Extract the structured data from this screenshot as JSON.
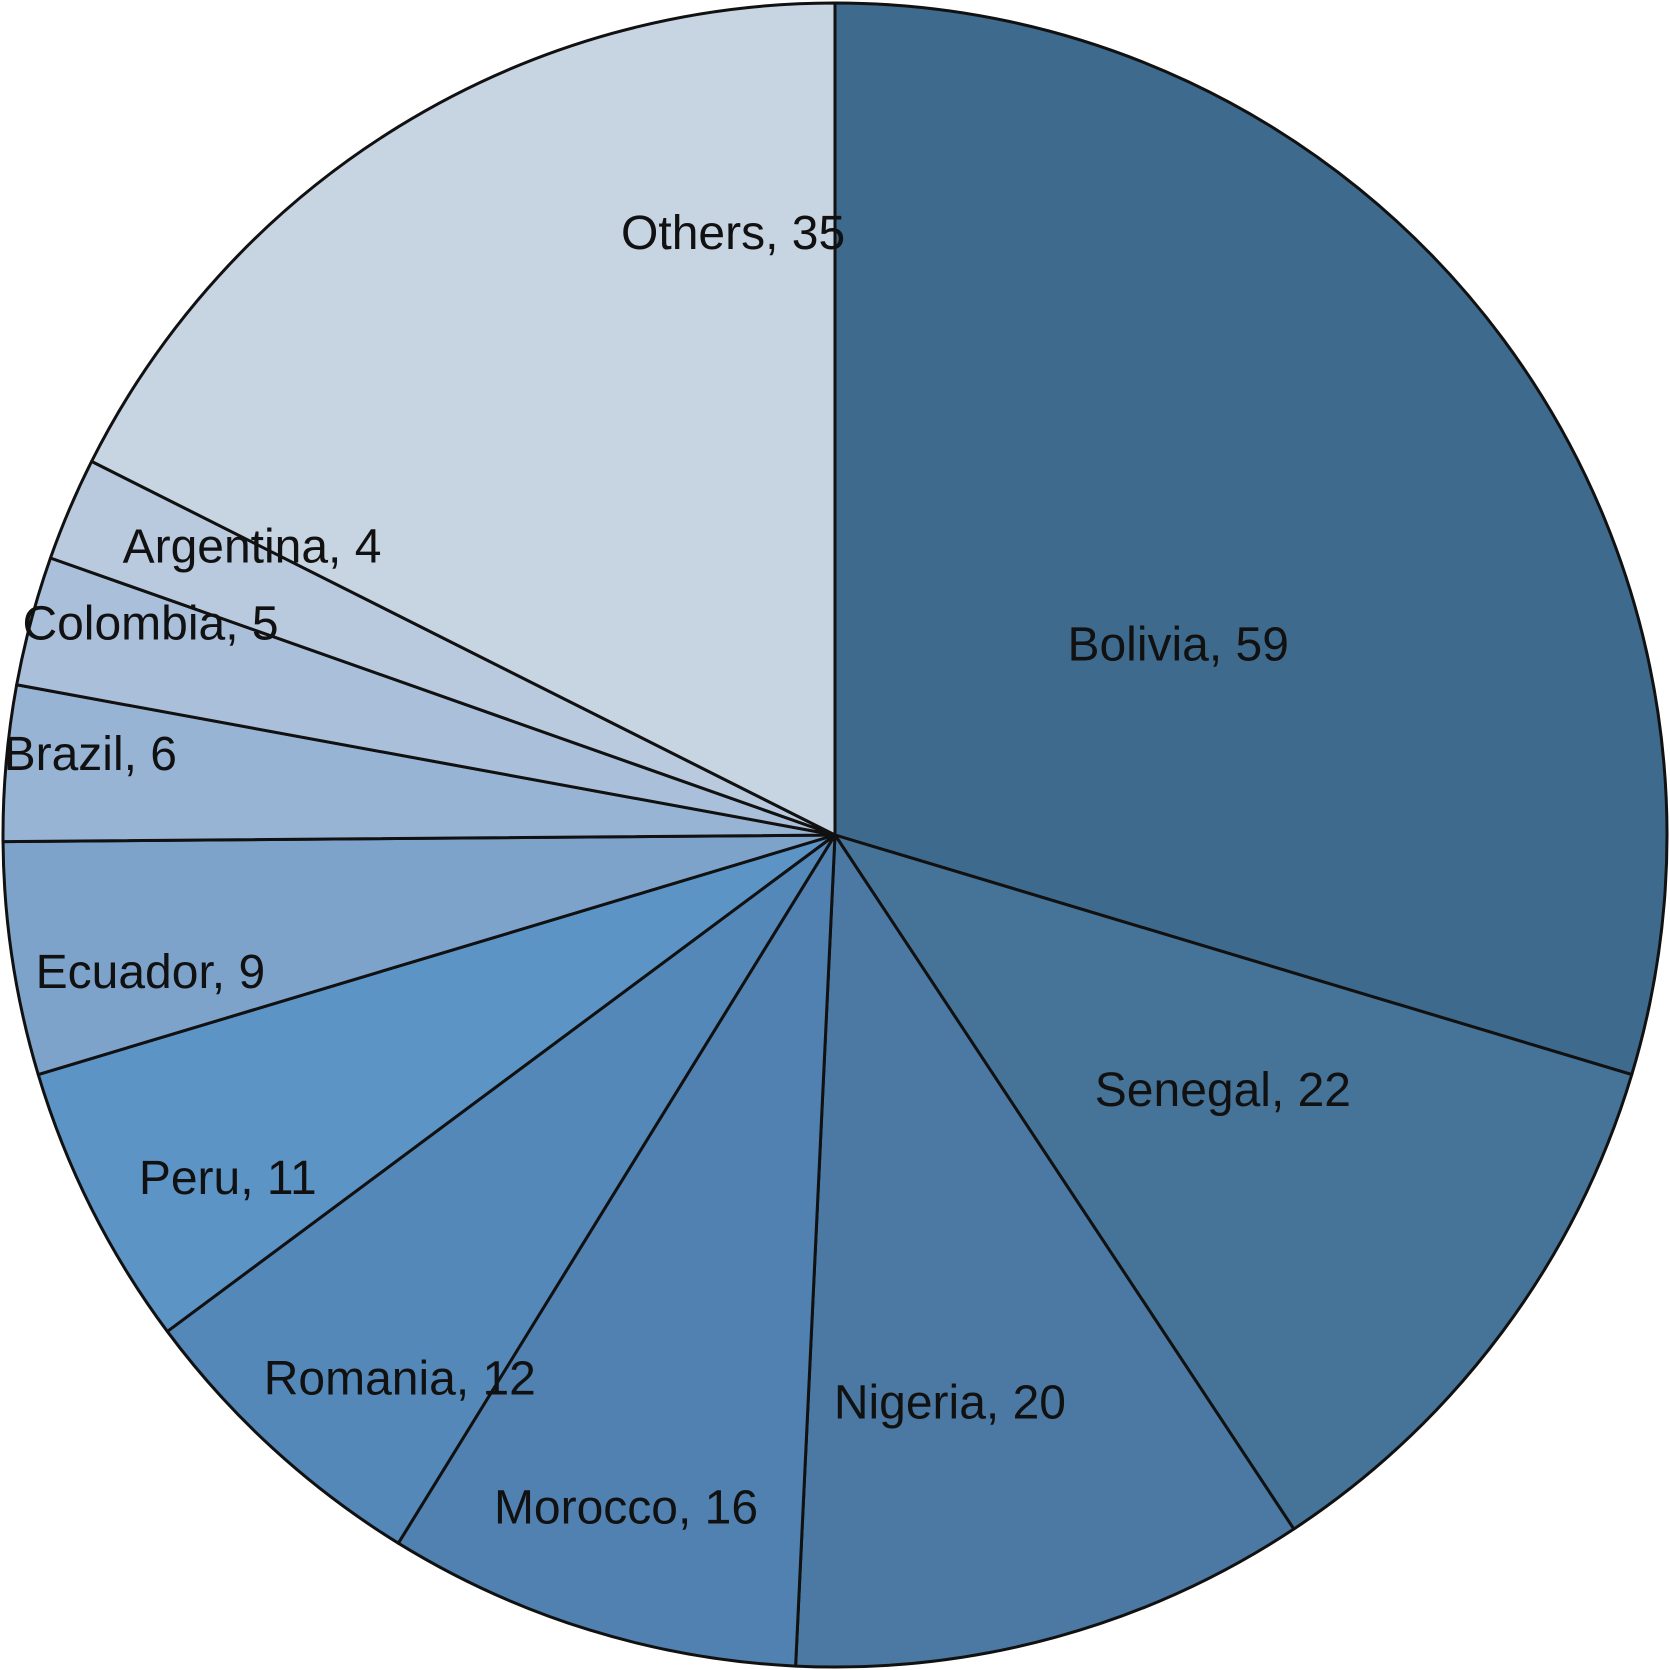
{
  "chart_data": {
    "type": "pie",
    "title": "",
    "start_angle_deg": 0,
    "direction": "clockwise",
    "legend": "none",
    "slices": [
      {
        "label": "Bolivia",
        "value": 59,
        "display": "Bolivia, 59",
        "color": "#3e6a8d"
      },
      {
        "label": "Senegal",
        "value": 22,
        "display": "Senegal, 22",
        "color": "#467398"
      },
      {
        "label": "Nigeria",
        "value": 20,
        "display": "Nigeria, 20",
        "color": "#4b79a3"
      },
      {
        "label": "Morocco",
        "value": 16,
        "display": "Morocco, 16",
        "color": "#5081b0"
      },
      {
        "label": "Romania",
        "value": 12,
        "display": "Romania, 12",
        "color": "#5488b9"
      },
      {
        "label": "Peru",
        "value": 11,
        "display": "Peru, 11",
        "color": "#5d94c6"
      },
      {
        "label": "Ecuador",
        "value": 9,
        "display": "Ecuador, 9",
        "color": "#7ea3cb"
      },
      {
        "label": "Brazil",
        "value": 6,
        "display": "Brazil, 6",
        "color": "#98b4d4"
      },
      {
        "label": "Colombia",
        "value": 5,
        "display": "Colombia, 5",
        "color": "#aabfda"
      },
      {
        "label": "Argentina",
        "value": 4,
        "display": "Argentina, 4",
        "color": "#b9cadf"
      },
      {
        "label": "Others",
        "value": 35,
        "display": "Others, 35",
        "color": "#c7d4e1"
      }
    ]
  }
}
